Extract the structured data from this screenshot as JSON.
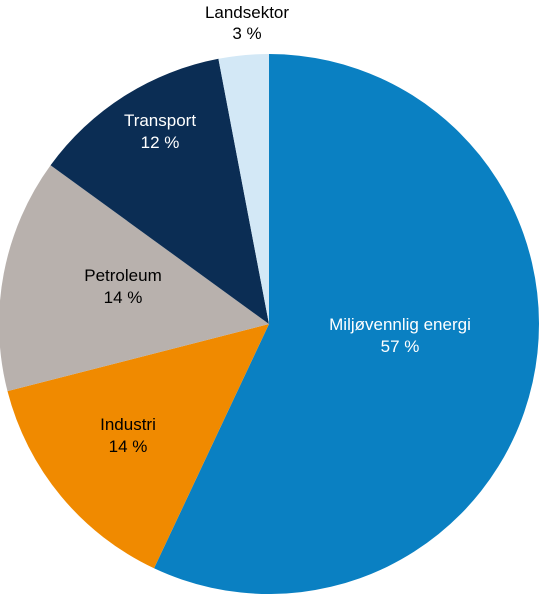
{
  "chart_data": {
    "type": "pie",
    "title": "",
    "start": "12 o'clock",
    "direction": "clockwise",
    "slices": [
      {
        "label": "Miljøvennlig energi",
        "value": 57,
        "value_label": "57 %",
        "color": "#0a80c2",
        "text_color": "#ffffff"
      },
      {
        "label": "Industri",
        "value": 14,
        "value_label": "14 %",
        "color": "#f08a00",
        "text_color": "#000000"
      },
      {
        "label": "Petroleum",
        "value": 14,
        "value_label": "14 %",
        "color": "#b8b1ad",
        "text_color": "#000000"
      },
      {
        "label": "Transport",
        "value": 12,
        "value_label": "12 %",
        "color": "#0b2d54",
        "text_color": "#ffffff"
      },
      {
        "label": "Landsektor",
        "value": 3,
        "value_label": "3 %",
        "color": "#d3e8f6",
        "text_color": "#000000"
      }
    ]
  }
}
